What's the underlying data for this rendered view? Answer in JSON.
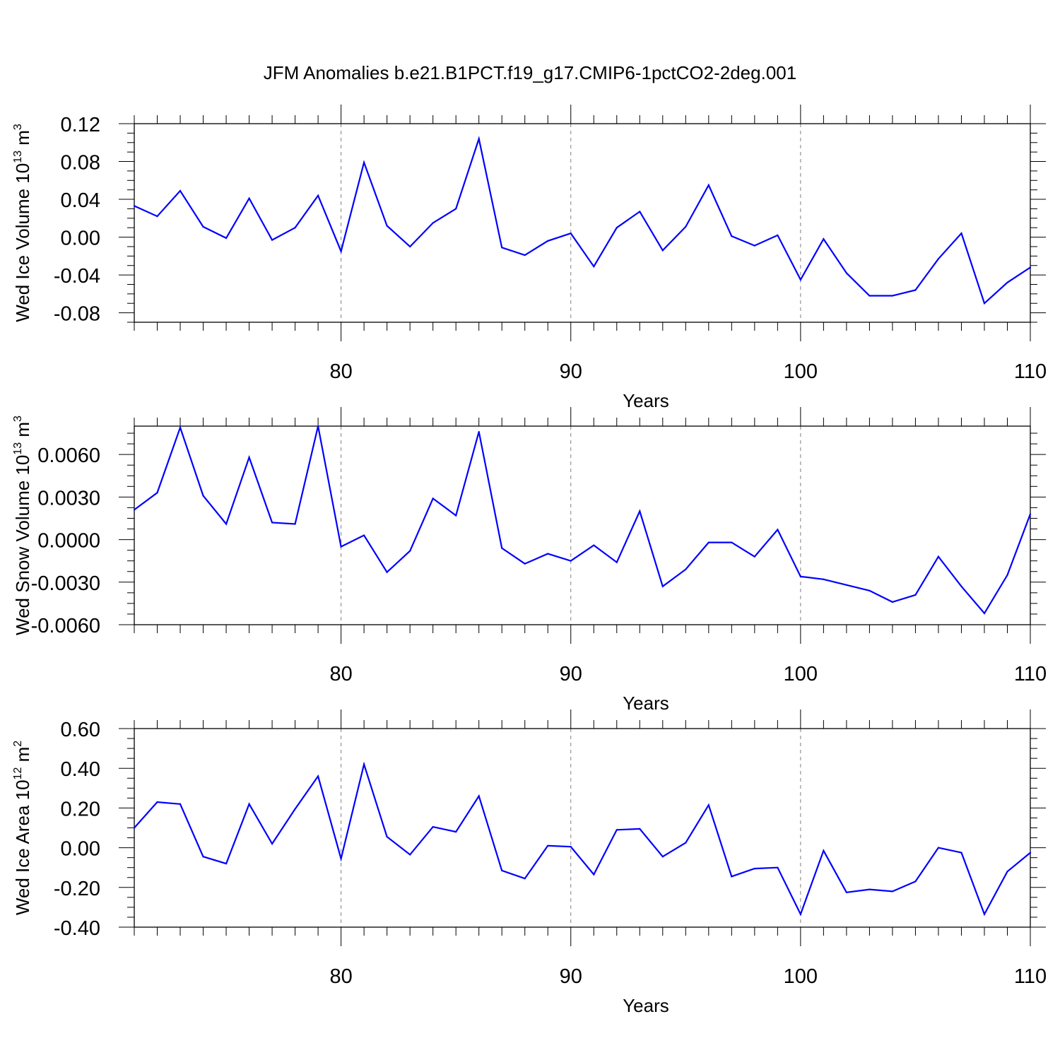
{
  "title": "JFM Anomalies b.e21.B1PCT.f19_g17.CMIP6-1pctCO2-2deg.001",
  "colors": {
    "line": "#0000ff",
    "axis": "#000000",
    "grid": "#7f7f7f"
  },
  "chart_data": [
    {
      "type": "line",
      "ylabel_main": "Wed Ice Volume 10",
      "ylabel_exp": "13",
      "ylabel_unit": " m",
      "ylabel_unit_exp": "3",
      "xlabel": "Years",
      "xlim": [
        71,
        110
      ],
      "ylim": [
        -0.09,
        0.12
      ],
      "xticks": [
        80,
        90,
        100,
        110
      ],
      "xtick_labels": [
        "80",
        "90",
        "100",
        "110"
      ],
      "yticks": [
        -0.08,
        -0.04,
        0.0,
        0.04,
        0.08,
        0.12
      ],
      "ytick_labels": [
        "-0.08",
        "-0.04",
        "0.00",
        "0.04",
        "0.08",
        "0.12"
      ],
      "x": [
        71,
        72,
        73,
        74,
        75,
        76,
        77,
        78,
        79,
        80,
        81,
        82,
        83,
        84,
        85,
        86,
        87,
        88,
        89,
        90,
        91,
        92,
        93,
        94,
        95,
        96,
        97,
        98,
        99,
        100,
        101,
        102,
        103,
        104,
        105,
        106,
        107,
        108,
        109,
        110
      ],
      "y": [
        0.033,
        0.022,
        0.049,
        0.011,
        -0.001,
        0.041,
        -0.003,
        0.01,
        0.044,
        -0.015,
        0.079,
        0.012,
        -0.01,
        0.015,
        0.03,
        0.104,
        -0.011,
        -0.019,
        -0.004,
        0.004,
        -0.031,
        0.01,
        0.027,
        -0.014,
        0.011,
        0.055,
        0.001,
        -0.009,
        0.002,
        -0.045,
        -0.002,
        -0.038,
        -0.062,
        -0.062,
        -0.056,
        -0.023,
        0.004,
        -0.07,
        -0.048,
        -0.032
      ]
    },
    {
      "type": "line",
      "ylabel_main": "Wed Snow Volume 10",
      "ylabel_exp": "13",
      "ylabel_unit": " m",
      "ylabel_unit_exp": "3",
      "xlabel": "Years",
      "xlim": [
        71,
        110
      ],
      "ylim": [
        -0.006,
        0.008
      ],
      "xticks": [
        80,
        90,
        100,
        110
      ],
      "xtick_labels": [
        "80",
        "90",
        "100",
        "110"
      ],
      "yticks": [
        -0.006,
        -0.003,
        0.0,
        0.003,
        0.006
      ],
      "ytick_labels": [
        "-0.0060",
        "-0.0030",
        "0.0000",
        "0.0030",
        "0.0060"
      ],
      "x": [
        71,
        72,
        73,
        74,
        75,
        76,
        77,
        78,
        79,
        80,
        81,
        82,
        83,
        84,
        85,
        86,
        87,
        88,
        89,
        90,
        91,
        92,
        93,
        94,
        95,
        96,
        97,
        98,
        99,
        100,
        101,
        102,
        103,
        104,
        105,
        106,
        107,
        108,
        109,
        110
      ],
      "y": [
        0.0021,
        0.0033,
        0.0079,
        0.0031,
        0.0011,
        0.0058,
        0.0012,
        0.0011,
        0.008,
        -0.0005,
        0.0003,
        -0.0023,
        -0.0008,
        0.0029,
        0.0017,
        0.0076,
        -0.0006,
        -0.0017,
        -0.001,
        -0.0015,
        -0.0004,
        -0.0016,
        0.002,
        -0.0033,
        -0.0021,
        -0.0002,
        -0.0002,
        -0.0012,
        0.0007,
        -0.0026,
        -0.0028,
        -0.0032,
        -0.0036,
        -0.0044,
        -0.0039,
        -0.0012,
        -0.0033,
        -0.0052,
        -0.0025,
        0.0018
      ]
    },
    {
      "type": "line",
      "ylabel_main": "Wed Ice Area 10",
      "ylabel_exp": "12",
      "ylabel_unit": " m",
      "ylabel_unit_exp": "2",
      "xlabel": "Years",
      "xlim": [
        71,
        110
      ],
      "ylim": [
        -0.4,
        0.6
      ],
      "xticks": [
        80,
        90,
        100,
        110
      ],
      "xtick_labels": [
        "80",
        "90",
        "100",
        "110"
      ],
      "yticks": [
        -0.4,
        -0.2,
        0.0,
        0.2,
        0.4,
        0.6
      ],
      "ytick_labels": [
        "-0.40",
        "-0.20",
        "0.00",
        "0.20",
        "0.40",
        "0.60"
      ],
      "x": [
        71,
        72,
        73,
        74,
        75,
        76,
        77,
        78,
        79,
        80,
        81,
        82,
        83,
        84,
        85,
        86,
        87,
        88,
        89,
        90,
        91,
        92,
        93,
        94,
        95,
        96,
        97,
        98,
        99,
        100,
        101,
        102,
        103,
        104,
        105,
        106,
        107,
        108,
        109,
        110
      ],
      "y": [
        0.1,
        0.23,
        0.22,
        -0.045,
        -0.08,
        0.22,
        0.02,
        0.195,
        0.36,
        -0.055,
        0.42,
        0.055,
        -0.035,
        0.105,
        0.08,
        0.26,
        -0.115,
        -0.155,
        0.01,
        0.005,
        -0.135,
        0.09,
        0.095,
        -0.045,
        0.025,
        0.215,
        -0.145,
        -0.105,
        -0.1,
        -0.335,
        -0.015,
        -0.225,
        -0.21,
        -0.22,
        -0.17,
        0.0,
        -0.025,
        -0.335,
        -0.12,
        -0.025
      ]
    }
  ]
}
